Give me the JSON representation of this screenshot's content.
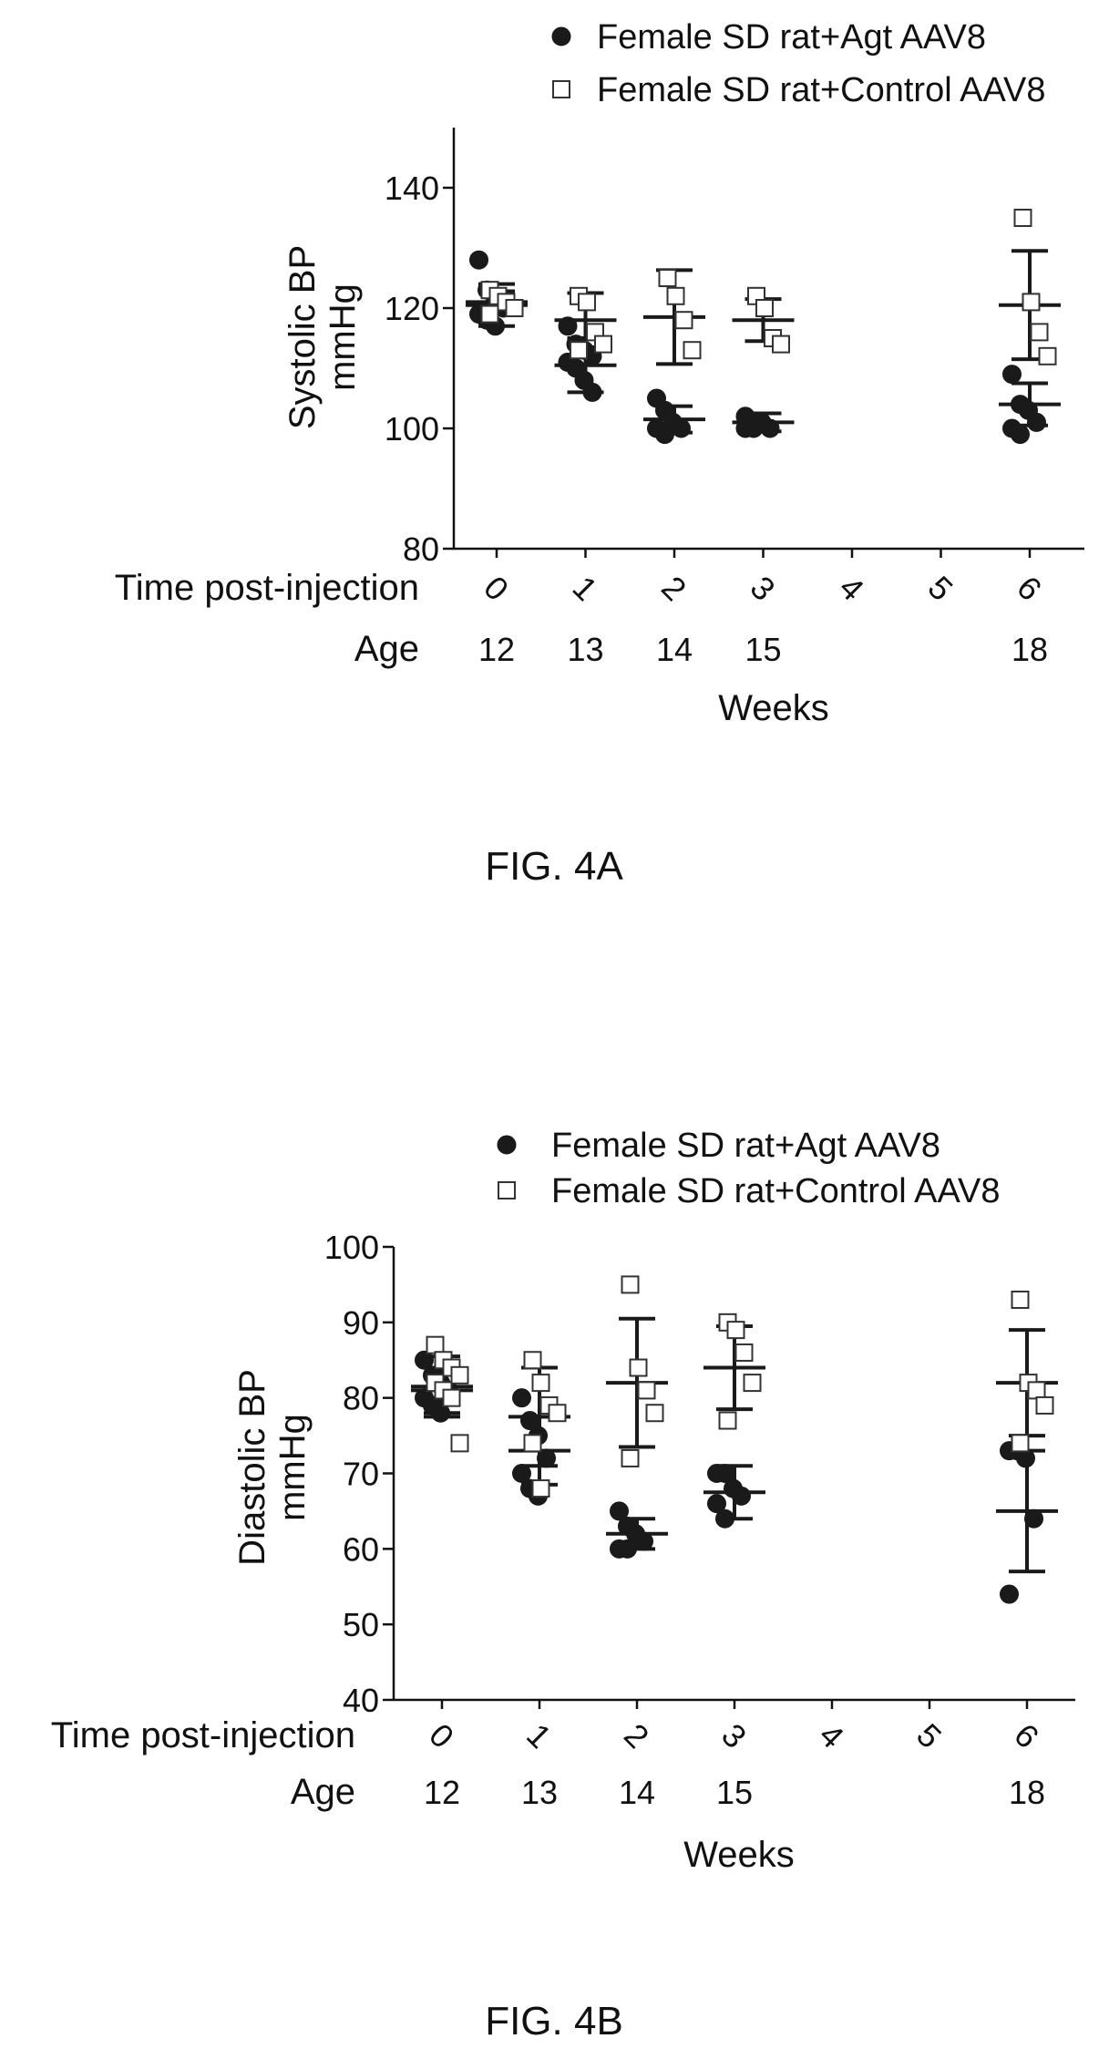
{
  "chart_data": [
    {
      "type": "scatter",
      "figure_caption": "FIG. 4A",
      "ylabel": "Systolic BP\nmmHg",
      "ylim": [
        80,
        150
      ],
      "yticks": [
        80,
        100,
        120,
        140
      ],
      "x_rows": [
        {
          "label": "Time post-injection",
          "ticks": [
            "0",
            "1",
            "2",
            "3",
            "4",
            "5",
            "6"
          ]
        },
        {
          "label": "Age",
          "ticks": [
            "12",
            "13",
            "14",
            "15",
            "",
            "",
            "18"
          ]
        }
      ],
      "xlabel": "Weeks",
      "legend_position": "top",
      "series": [
        {
          "name": "Female SD rat+Agt AAV8",
          "marker": "filled-circle",
          "points": [
            {
              "x": 0,
              "ys": [
                128,
                123,
                121,
                120,
                119,
                118,
                117
              ]
            },
            {
              "x": 1,
              "ys": [
                117,
                114,
                113,
                112,
                111,
                110,
                108,
                106
              ]
            },
            {
              "x": 2,
              "ys": [
                105,
                103,
                101,
                100,
                100,
                99
              ]
            },
            {
              "x": 3,
              "ys": [
                102,
                101,
                101,
                100,
                100,
                100
              ]
            },
            {
              "x": 6,
              "ys": [
                109,
                104,
                103,
                101,
                100,
                99
              ]
            }
          ],
          "means": [
            {
              "x": 0,
              "mean": 120.5,
              "sd": 3.5
            },
            {
              "x": 1,
              "mean": 110.5,
              "sd": 4.5
            },
            {
              "x": 2,
              "mean": 101.5,
              "sd": 2.2
            },
            {
              "x": 3,
              "mean": 101,
              "sd": 1.5
            },
            {
              "x": 6,
              "mean": 104,
              "sd": 3.5
            }
          ]
        },
        {
          "name": "Female SD rat+Control AAV8",
          "marker": "open-square",
          "points": [
            {
              "x": 0,
              "ys": [
                123,
                122,
                121,
                120,
                119
              ]
            },
            {
              "x": 1,
              "ys": [
                122,
                121,
                116,
                114,
                113
              ]
            },
            {
              "x": 2,
              "ys": [
                125,
                122,
                118,
                113
              ]
            },
            {
              "x": 3,
              "ys": [
                122,
                120,
                115,
                114
              ]
            },
            {
              "x": 6,
              "ys": [
                135,
                121,
                116,
                112
              ]
            }
          ],
          "means": [
            {
              "x": 0,
              "mean": 121,
              "sd": 1.8
            },
            {
              "x": 1,
              "mean": 118,
              "sd": 4.5
            },
            {
              "x": 2,
              "mean": 118.5,
              "sd": 7.8
            },
            {
              "x": 3,
              "mean": 118,
              "sd": 3.5
            },
            {
              "x": 6,
              "mean": 120.5,
              "sd": 9
            }
          ]
        }
      ]
    },
    {
      "type": "scatter",
      "figure_caption": "FIG. 4B",
      "ylabel": "Diastolic BP\nmmHg",
      "ylim": [
        40,
        100
      ],
      "yticks": [
        40,
        50,
        60,
        70,
        80,
        90,
        100
      ],
      "x_rows": [
        {
          "label": "Time post-injection",
          "ticks": [
            "0",
            "1",
            "2",
            "3",
            "4",
            "5",
            "6"
          ]
        },
        {
          "label": "Age",
          "ticks": [
            "12",
            "13",
            "14",
            "15",
            "",
            "",
            "18"
          ]
        }
      ],
      "xlabel": "Weeks",
      "legend_position": "top",
      "series": [
        {
          "name": "Female SD rat+Agt AAV8",
          "marker": "filled-circle",
          "points": [
            {
              "x": 0,
              "ys": [
                85,
                83,
                82,
                81,
                80,
                79,
                78
              ]
            },
            {
              "x": 1,
              "ys": [
                80,
                77,
                75,
                72,
                70,
                68,
                67
              ]
            },
            {
              "x": 2,
              "ys": [
                65,
                63,
                62,
                61,
                60,
                60
              ]
            },
            {
              "x": 3,
              "ys": [
                70,
                70,
                68,
                67,
                66,
                64
              ]
            },
            {
              "x": 6,
              "ys": [
                73,
                73,
                72,
                64,
                54
              ]
            }
          ],
          "means": [
            {
              "x": 0,
              "mean": 81,
              "sd": 3
            },
            {
              "x": 1,
              "mean": 73,
              "sd": 4.5
            },
            {
              "x": 2,
              "mean": 62,
              "sd": 2
            },
            {
              "x": 3,
              "mean": 67.5,
              "sd": 3.5
            },
            {
              "x": 6,
              "mean": 65,
              "sd": 8
            }
          ]
        },
        {
          "name": "Female SD rat+Control AAV8",
          "marker": "open-square",
          "points": [
            {
              "x": 0,
              "ys": [
                87,
                85,
                84,
                83,
                82,
                81,
                80,
                74
              ]
            },
            {
              "x": 1,
              "ys": [
                85,
                82,
                79,
                78,
                74,
                68
              ]
            },
            {
              "x": 2,
              "ys": [
                95,
                84,
                81,
                78,
                72
              ]
            },
            {
              "x": 3,
              "ys": [
                90,
                89,
                86,
                82,
                77
              ]
            },
            {
              "x": 6,
              "ys": [
                93,
                82,
                81,
                79,
                74
              ]
            }
          ],
          "means": [
            {
              "x": 0,
              "mean": 81.5,
              "sd": 4
            },
            {
              "x": 1,
              "mean": 77.5,
              "sd": 6.5
            },
            {
              "x": 2,
              "mean": 82,
              "sd": 8.5
            },
            {
              "x": 3,
              "mean": 84,
              "sd": 5.5
            },
            {
              "x": 6,
              "mean": 82,
              "sd": 7
            }
          ]
        }
      ]
    }
  ]
}
